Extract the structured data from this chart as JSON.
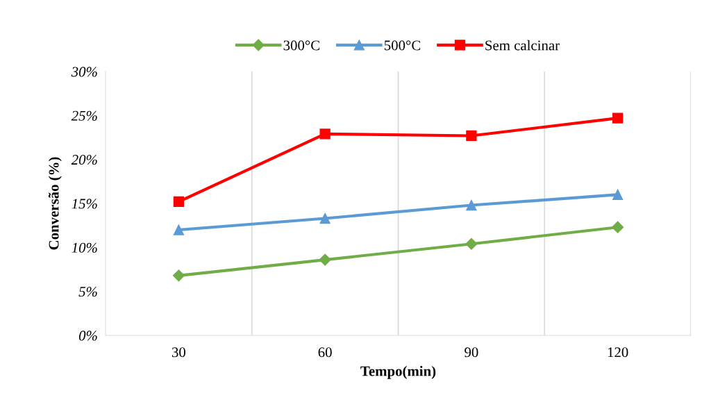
{
  "chart_data": {
    "type": "line",
    "xlabel": "Tempo(min)",
    "ylabel": "Conversão (%)",
    "categories": [
      "30",
      "60",
      "90",
      "120"
    ],
    "series": [
      {
        "name": "300°C",
        "color": "#70ad47",
        "marker": "diamond",
        "values": [
          6.8,
          8.6,
          10.4,
          12.3
        ]
      },
      {
        "name": "500°C",
        "color": "#5b9bd5",
        "marker": "triangle",
        "values": [
          12.0,
          13.3,
          14.8,
          16.0
        ]
      },
      {
        "name": "Sem calcinar",
        "color": "#ff0000",
        "marker": "square",
        "values": [
          15.2,
          22.9,
          22.7,
          24.7
        ]
      }
    ],
    "ylim": [
      0,
      30
    ],
    "yticks": [
      {
        "value": 0,
        "label": "0%"
      },
      {
        "value": 5,
        "label": "5%"
      },
      {
        "value": 10,
        "label": "10%"
      },
      {
        "value": 15,
        "label": "15%"
      },
      {
        "value": 20,
        "label": "20%"
      },
      {
        "value": 25,
        "label": "25%"
      },
      {
        "value": 30,
        "label": "30%"
      }
    ],
    "grid": "x",
    "legend": "top"
  }
}
